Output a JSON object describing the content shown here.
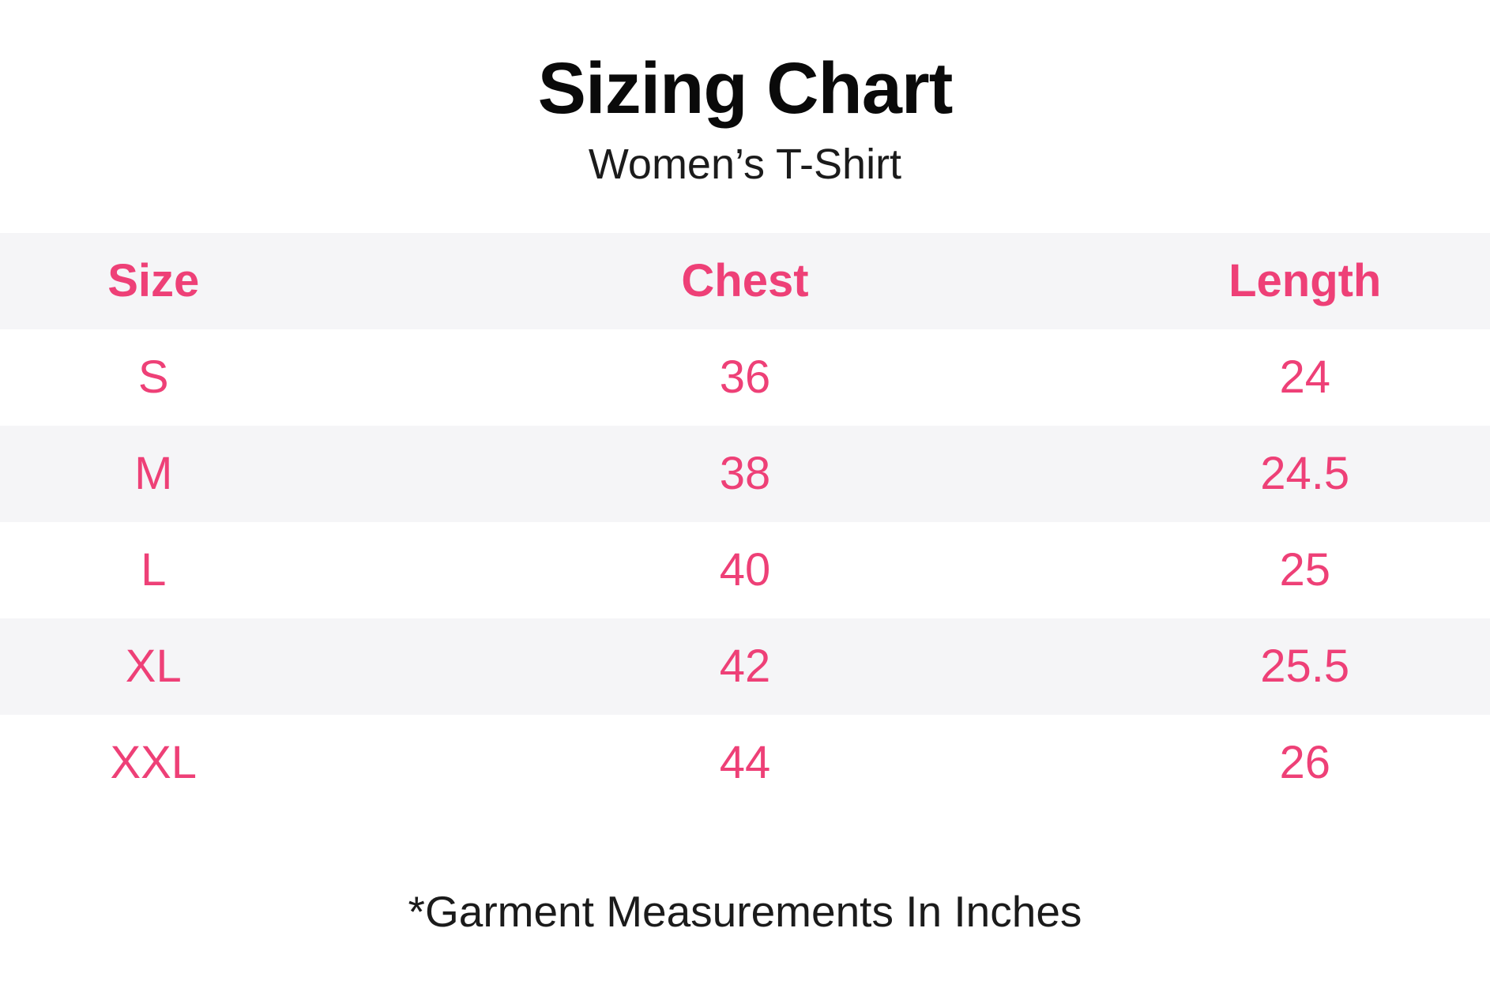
{
  "colors": {
    "accent": "#ee4077",
    "row_alt": "#f5f5f7",
    "ink": "#0a0a0a",
    "ink_soft": "#1b1b1b",
    "background": "#ffffff"
  },
  "chart_data": {
    "type": "table",
    "title": "Sizing Chart",
    "subtitle": "Women’s T-Shirt",
    "columns": [
      "Size",
      "Chest",
      "Length"
    ],
    "rows": [
      [
        "S",
        "36",
        "24"
      ],
      [
        "M",
        "38",
        "24.5"
      ],
      [
        "L",
        "40",
        "25"
      ],
      [
        "XL",
        "42",
        "25.5"
      ],
      [
        "XXL",
        "44",
        "26"
      ]
    ],
    "footnote": "*Garment Measurements In Inches"
  }
}
